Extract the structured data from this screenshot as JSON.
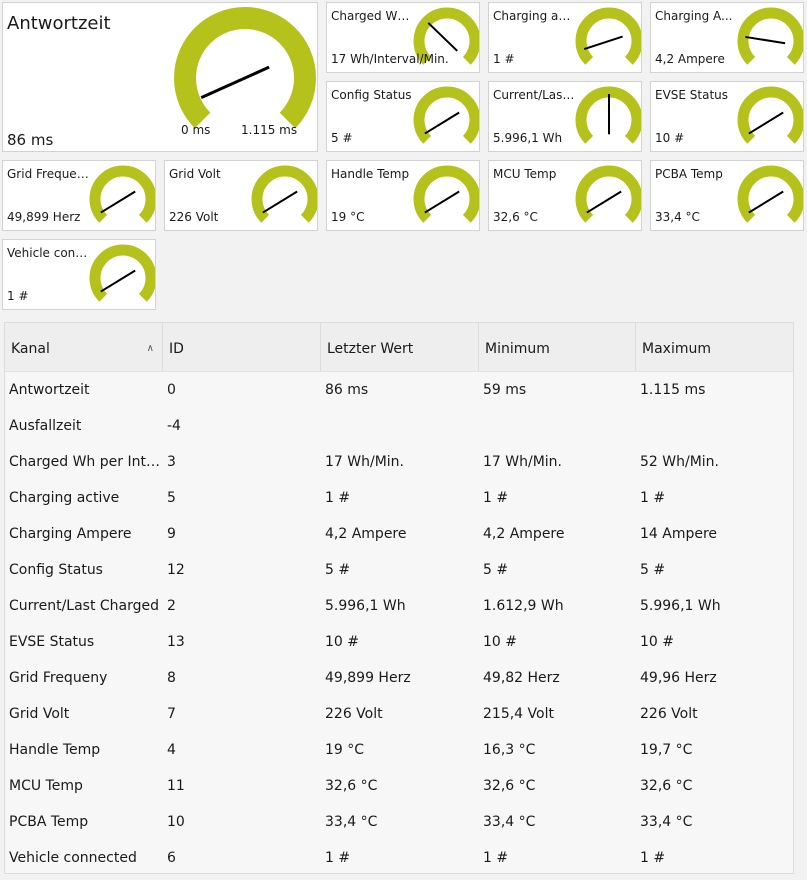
{
  "colors": {
    "accent": "#b5c21c",
    "needle": "#000000",
    "tile_border": "#d2d2d2"
  },
  "big_gauge": {
    "name": "Antwortzeit",
    "value": "86 ms",
    "min_label": "0 ms",
    "max_label": "1.115 ms",
    "fraction": 0.077
  },
  "tiles": [
    {
      "name": "Charged Wh...",
      "value": "17 Wh/Interval/Min.",
      "fraction": 0.33
    },
    {
      "name": "Charging act...",
      "value": "1 #",
      "fraction": 0.1
    },
    {
      "name": "Charging A...",
      "value": "4,2 Ampere",
      "fraction": 0.2
    },
    {
      "name": "Config Status",
      "value": "5 #",
      "fraction": 0.05
    },
    {
      "name": "Current/Last ...",
      "value": "5.996,1 Wh",
      "fraction": 0.5
    },
    {
      "name": "EVSE Status",
      "value": "10 #",
      "fraction": 0.05
    },
    {
      "name": "Grid Frequeny",
      "value": "49,899 Herz",
      "fraction": 0.05
    },
    {
      "name": "Grid Volt",
      "value": "226 Volt",
      "fraction": 0.05
    },
    {
      "name": "Handle Temp",
      "value": "19 °C",
      "fraction": 0.05
    },
    {
      "name": "MCU Temp",
      "value": "32,6 °C",
      "fraction": 0.05
    },
    {
      "name": "PCBA Temp",
      "value": "33,4 °C",
      "fraction": 0.05
    },
    {
      "name": "Vehicle conn...",
      "value": "1 #",
      "fraction": 0.05
    }
  ],
  "table": {
    "headers": [
      "Kanal",
      "ID",
      "Letzter Wert",
      "Minimum",
      "Maximum"
    ],
    "rows": [
      [
        "Antwortzeit",
        "0",
        "86 ms",
        "59 ms",
        "1.115 ms"
      ],
      [
        "Ausfallzeit",
        "-4",
        "",
        "",
        ""
      ],
      [
        "Charged Wh per Interval/Min.",
        "3",
        "17 Wh/Min.",
        "17 Wh/Min.",
        "52 Wh/Min."
      ],
      [
        "Charging active",
        "5",
        "1 #",
        "1 #",
        "1 #"
      ],
      [
        "Charging Ampere",
        "9",
        "4,2 Ampere",
        "4,2 Ampere",
        "14 Ampere"
      ],
      [
        "Config Status",
        "12",
        "5 #",
        "5 #",
        "5 #"
      ],
      [
        "Current/Last Charged",
        "2",
        "5.996,1 Wh",
        "1.612,9 Wh",
        "5.996,1 Wh"
      ],
      [
        "EVSE Status",
        "13",
        "10 #",
        "10 #",
        "10 #"
      ],
      [
        "Grid Frequeny",
        "8",
        "49,899 Herz",
        "49,82 Herz",
        "49,96 Herz"
      ],
      [
        "Grid Volt",
        "7",
        "226 Volt",
        "215,4 Volt",
        "226 Volt"
      ],
      [
        "Handle Temp",
        "4",
        "19 °C",
        "16,3 °C",
        "19,7 °C"
      ],
      [
        "MCU Temp",
        "11",
        "32,6 °C",
        "32,6 °C",
        "32,6 °C"
      ],
      [
        "PCBA Temp",
        "10",
        "33,4 °C",
        "33,4 °C",
        "33,4 °C"
      ],
      [
        "Vehicle connected",
        "6",
        "1 #",
        "1 #",
        "1 #"
      ]
    ]
  }
}
